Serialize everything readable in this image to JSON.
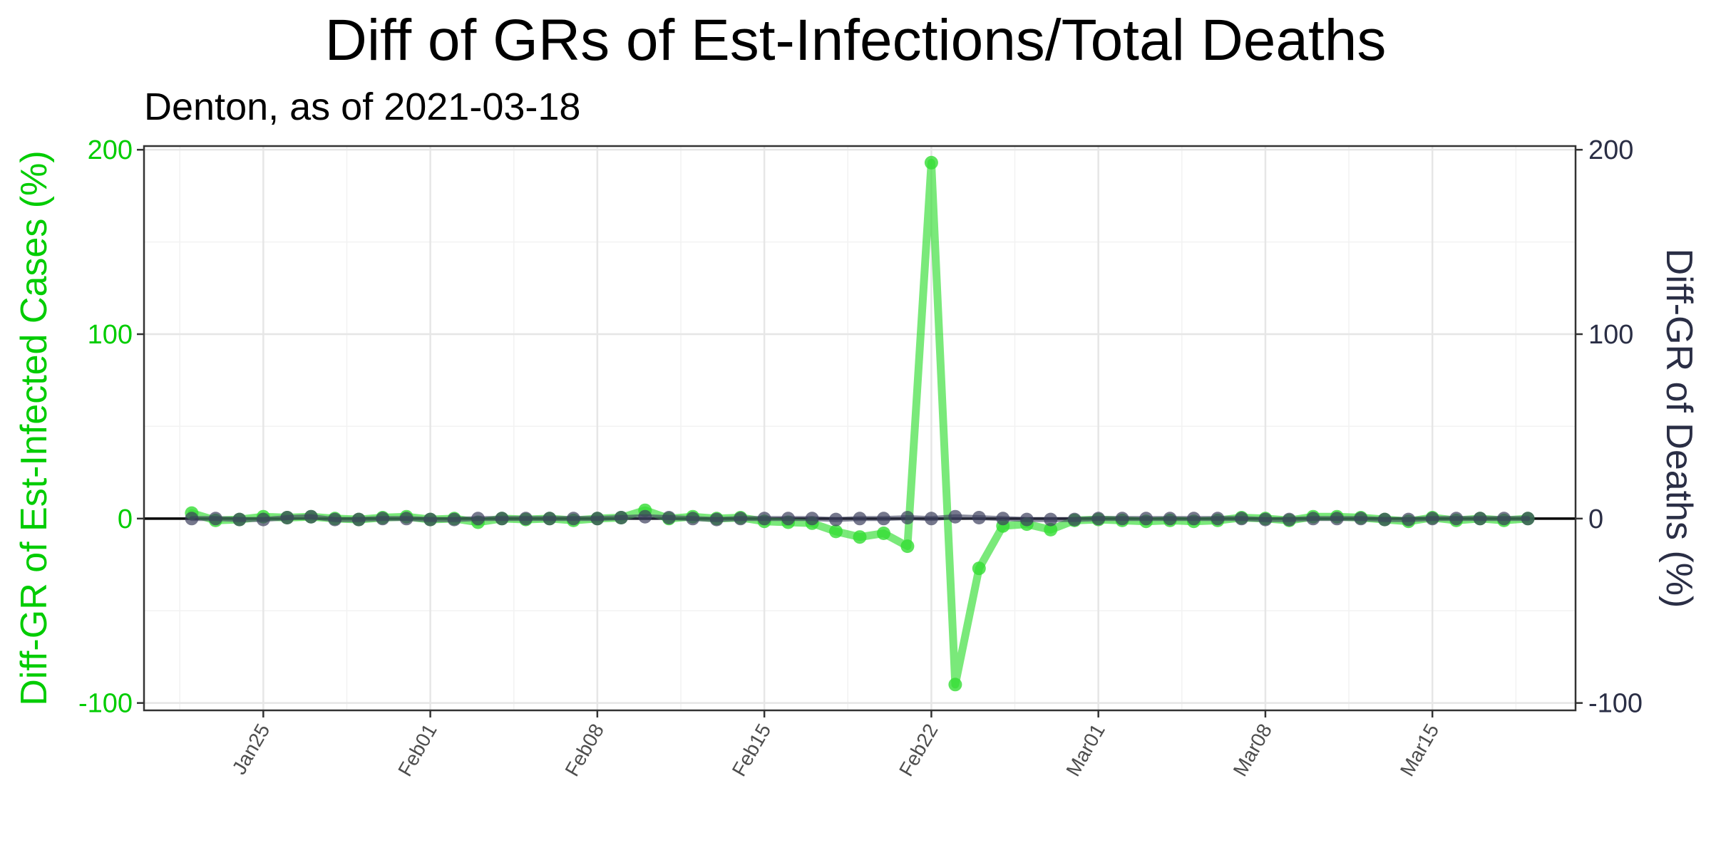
{
  "chart_data": {
    "type": "line",
    "title": "Diff of GRs of Est-Infections/Total Deaths",
    "subtitle": "Denton, as of 2021-03-18",
    "ylabel_left": "Diff-GR of Est-Infected Cases (%)",
    "ylabel_right": "Diff-GR of Deaths (%)",
    "ylim": [
      -104,
      202
    ],
    "yticks": [
      -100,
      0,
      100,
      200
    ],
    "y_tick_labels": [
      "-100",
      "0",
      "100",
      "200"
    ],
    "x_start": "2021-01-22",
    "x_end": "2021-03-18",
    "xlim": [
      "2021-01-20",
      "2021-03-21"
    ],
    "x_ticks": [
      "2021-01-25",
      "2021-02-01",
      "2021-02-08",
      "2021-02-15",
      "2021-02-22",
      "2021-03-01",
      "2021-03-08",
      "2021-03-15"
    ],
    "x_tick_labels": [
      "Jan25",
      "Feb01",
      "Feb08",
      "Feb15",
      "Feb22",
      "Mar01",
      "Mar08",
      "Mar15"
    ],
    "grid": true,
    "hline": 0,
    "series": [
      {
        "color": "#33dd33",
        "values": [
          3,
          -1,
          -0.5,
          1,
          0.5,
          1,
          0,
          -0.5,
          0.5,
          1,
          -0.5,
          0,
          -2,
          0,
          -0.5,
          0,
          -1,
          0,
          0.5,
          4.5,
          0,
          1,
          0,
          0.5,
          -1.5,
          -2,
          -2.5,
          -7,
          -10,
          -8,
          -15,
          193,
          -90,
          -27,
          -4,
          -3,
          -6,
          -1,
          -0.5,
          -1,
          -1.5,
          -1,
          -1.5,
          -1,
          0.5,
          0,
          -1,
          1,
          1,
          0.5,
          -0.5,
          -1.5,
          0.5,
          -1,
          0,
          -1,
          0
        ]
      },
      {
        "color": "#3c3f5c",
        "values": [
          0,
          0,
          -0.5,
          -0.5,
          0.5,
          1,
          -0.5,
          -0.5,
          0,
          0,
          -0.5,
          -0.5,
          0,
          0,
          0,
          0,
          0,
          0,
          0.5,
          1,
          0.5,
          0,
          -0.5,
          0,
          0,
          0,
          0,
          -0.5,
          0,
          0,
          0.5,
          0,
          1,
          0.5,
          0,
          -0.5,
          -0.5,
          -0.5,
          0,
          0,
          0,
          0,
          0,
          0,
          0,
          -0.5,
          -0.5,
          0,
          0,
          0,
          -0.5,
          -0.5,
          0,
          0,
          0,
          0,
          0
        ]
      }
    ]
  }
}
